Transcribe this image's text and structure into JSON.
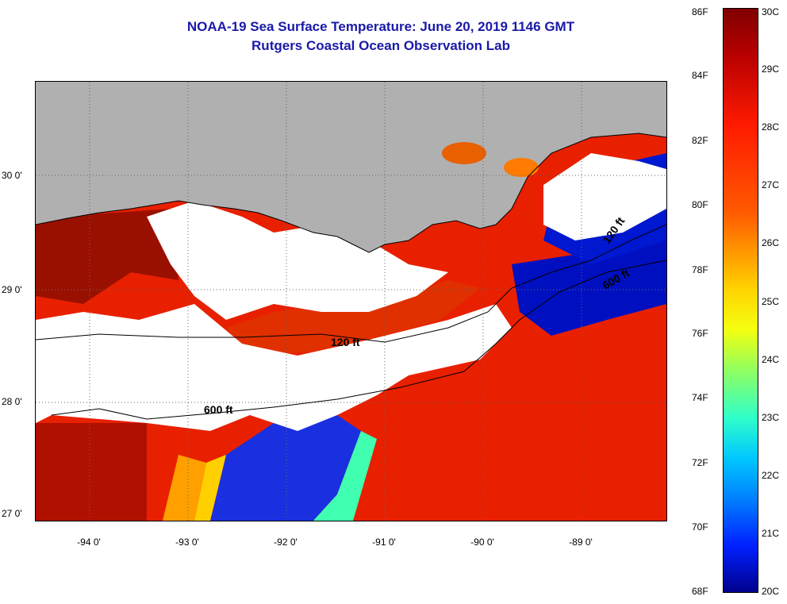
{
  "title": {
    "line1": "NOAA-19 Sea Surface Temperature:  June 20, 2019 1146 GMT",
    "line2": "Rutgers Coastal Ocean Observation Lab"
  },
  "map": {
    "lat_labels": [
      "30 0'",
      "29 0'",
      "28 0'",
      "27 0'"
    ],
    "lon_labels": [
      "-94 0'",
      "-93 0'",
      "-92 0'",
      "-91 0'",
      "-90 0'",
      "-89 0'"
    ],
    "contour_labels": [
      "120 ft",
      "600 ft",
      "120 ft",
      "600 ft"
    ],
    "colors": {
      "land": "#b0b0b0",
      "cloud": "#ffffff"
    }
  },
  "colorbar": {
    "f_labels": [
      "86F",
      "84F",
      "82F",
      "80F",
      "78F",
      "76F",
      "74F",
      "72F",
      "70F",
      "68F"
    ],
    "c_labels": [
      "30C",
      "29C",
      "28C",
      "27C",
      "26C",
      "25C",
      "24C",
      "23C",
      "22C",
      "21C",
      "20C"
    ]
  }
}
